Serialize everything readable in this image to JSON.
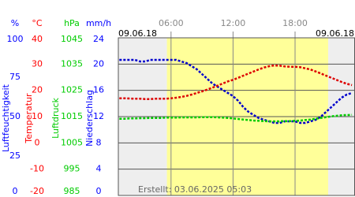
{
  "chart_data": {
    "type": "line",
    "date_start": "09.06.18",
    "date_end": "09.06.18",
    "footer": "Erstellt: 03.06.2025 05:03",
    "x": [
      1,
      1.5,
      2,
      2.5,
      3,
      3.5,
      4,
      4.5,
      5,
      5.5,
      6,
      6.5,
      7,
      7.5,
      8,
      8.5,
      9,
      9.5,
      10,
      10.5,
      11,
      11.5,
      12,
      12.5,
      13,
      13.5,
      14,
      14.5,
      15,
      15.5,
      16,
      16.5,
      17,
      17.5,
      18,
      18.5,
      19,
      19.5,
      20,
      20.5,
      21,
      21.5,
      22,
      22.5,
      23,
      23.5
    ],
    "xlim": [
      0.9,
      23.8
    ],
    "xticks": [
      {
        "value": 6,
        "label": "06:00"
      },
      {
        "value": 12,
        "label": "12:00"
      },
      {
        "value": 18,
        "label": "18:00"
      }
    ],
    "daylight": [
      5.6,
      21.2
    ],
    "grid": true,
    "y_axes": [
      {
        "unit": "%",
        "title": "Luftfeuchtigkeit",
        "color": "#0000ff",
        "ylim": [
          0,
          100
        ],
        "yticks": [
          0,
          25,
          50,
          75,
          100
        ]
      },
      {
        "unit": "°C",
        "title": "Temperatur",
        "color": "#ff0000",
        "ylim": [
          -20,
          40
        ],
        "yticks": [
          -20,
          -10,
          0,
          10,
          20,
          30,
          40
        ]
      },
      {
        "unit": "hPa",
        "title": "Luftdruck",
        "color": "#00cc00",
        "ylim": [
          985,
          1045
        ],
        "yticks": [
          985,
          995,
          1005,
          1015,
          1025,
          1035,
          1045
        ]
      },
      {
        "unit": "mm/h",
        "title": "Niederschlag",
        "color": "#0000ff",
        "ylim": [
          0,
          24
        ],
        "yticks": [
          0,
          4,
          8,
          12,
          16,
          20,
          24
        ]
      }
    ],
    "series": [
      {
        "axis": 0,
        "color": "#0000cc",
        "values": [
          86,
          86,
          86,
          86,
          85,
          85,
          86,
          86,
          86,
          86,
          86,
          86,
          85,
          84,
          82,
          80,
          77,
          74,
          71,
          69,
          67,
          65,
          63,
          60,
          56,
          53,
          51,
          49,
          48,
          47,
          46,
          46,
          47,
          47,
          47,
          46,
          46,
          47,
          48,
          50,
          53,
          56,
          59,
          62,
          64,
          65
        ]
      },
      {
        "axis": 1,
        "color": "#dd0000",
        "values": [
          17,
          17,
          16.9,
          16.8,
          16.8,
          16.7,
          16.7,
          16.8,
          16.8,
          16.8,
          17,
          17.2,
          17.5,
          17.9,
          18.4,
          19,
          19.6,
          20.3,
          21,
          21.8,
          22.6,
          23.4,
          24,
          24.8,
          25.6,
          26.4,
          27.2,
          28,
          28.7,
          29.2,
          29.5,
          29.4,
          29.1,
          29,
          29,
          28.8,
          28.4,
          27.9,
          27.2,
          26.4,
          25.6,
          24.8,
          24,
          23.2,
          22.5,
          22
        ]
      },
      {
        "axis": 2,
        "color": "#00cc00",
        "values": [
          1014.2,
          1014.2,
          1014.3,
          1014.3,
          1014.4,
          1014.4,
          1014.5,
          1014.5,
          1014.5,
          1014.6,
          1014.6,
          1014.6,
          1014.7,
          1014.7,
          1014.7,
          1014.7,
          1014.8,
          1014.8,
          1014.8,
          1014.7,
          1014.6,
          1014.5,
          1014.3,
          1014.1,
          1013.9,
          1013.7,
          1013.5,
          1013.4,
          1013.3,
          1013.2,
          1013.2,
          1013.2,
          1013.3,
          1013.3,
          1013.4,
          1013.5,
          1013.7,
          1013.9,
          1014.2,
          1014.5,
          1014.8,
          1015.1,
          1015.3,
          1015.5,
          1015.6,
          1015.7
        ]
      }
    ]
  }
}
